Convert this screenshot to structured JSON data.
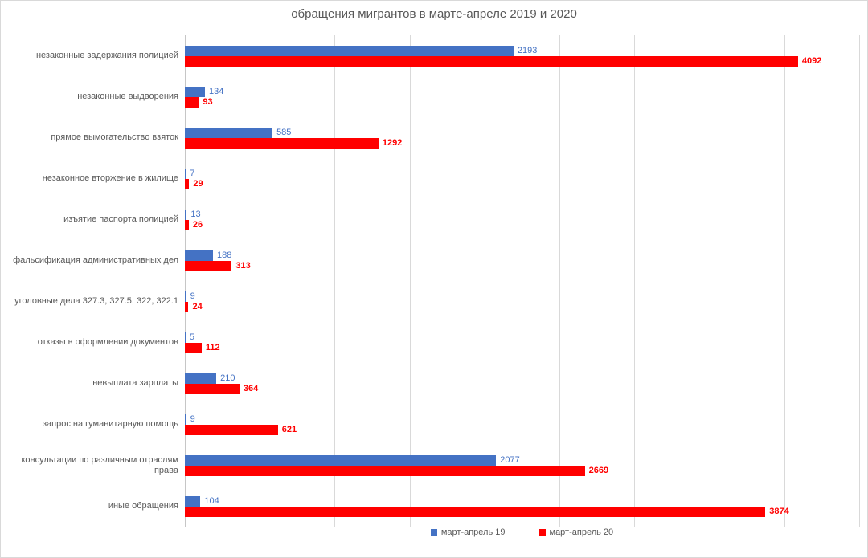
{
  "chart_data": {
    "type": "bar",
    "orientation": "horizontal",
    "title": "обращения мигрантов в марте-апреле 2019 и 2020",
    "categories": [
      "незаконные задержания полицией",
      "незаконные выдворения",
      "прямое вымогательство взяток",
      "незаконное вторжение в жилище",
      "изъятие паспорта полицией",
      "фальсификация административных дел",
      "уголовные дела 327.3, 327.5, 322, 322.1",
      "отказы в оформлении документов",
      "невыплата зарплаты",
      "запрос на гуманитарную помощь",
      "консультации по различным отраслям права",
      "иные обращения"
    ],
    "series": [
      {
        "name": "март-апрель 19",
        "color": "#4472c4",
        "label_color": "#4472c4",
        "label_bold": false,
        "values": [
          2193,
          134,
          585,
          7,
          13,
          188,
          9,
          5,
          210,
          9,
          2077,
          104
        ]
      },
      {
        "name": "март-апрель 20",
        "color": "#ff0000",
        "label_color": "#ff0000",
        "label_bold": true,
        "values": [
          4092,
          93,
          1292,
          29,
          26,
          313,
          24,
          112,
          364,
          621,
          2669,
          3874
        ]
      }
    ],
    "x_axis": {
      "min": 0,
      "max": 4500,
      "gridline_step": 500,
      "tick_labels_visible": false
    },
    "grid": true,
    "data_labels": true,
    "legend_position": "bottom"
  },
  "colors": {
    "title_text": "#595959",
    "category_text": "#595959",
    "legend_text": "#595959",
    "gridline": "#d9d9d9",
    "axis_line": "#c6c6c6",
    "background": "#ffffff",
    "border": "#d9d9d9"
  }
}
